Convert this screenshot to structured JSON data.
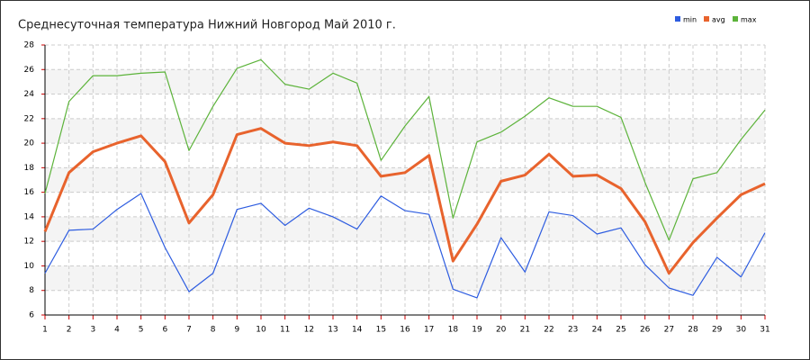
{
  "chart_data": {
    "type": "line",
    "title": "Среднесуточная температура Нижний Новгород  Май 2010 г.",
    "x": [
      1,
      2,
      3,
      4,
      5,
      6,
      7,
      8,
      9,
      10,
      11,
      12,
      13,
      14,
      15,
      16,
      17,
      18,
      19,
      20,
      21,
      22,
      23,
      24,
      25,
      26,
      27,
      28,
      29,
      30,
      31
    ],
    "xlim": [
      1,
      31
    ],
    "xticks": [
      1,
      2,
      3,
      4,
      5,
      6,
      7,
      8,
      9,
      10,
      11,
      12,
      13,
      14,
      15,
      16,
      17,
      18,
      19,
      20,
      21,
      22,
      23,
      24,
      25,
      26,
      27,
      28,
      29,
      30,
      31
    ],
    "ylim": [
      6,
      28
    ],
    "yticks": [
      6,
      8,
      10,
      12,
      14,
      16,
      18,
      20,
      22,
      24,
      26,
      28
    ],
    "grid": true,
    "legend": "top-right",
    "series": [
      {
        "name": "min",
        "color": "#2d5ce0",
        "values": [
          9.4,
          12.9,
          13.0,
          14.6,
          15.9,
          11.5,
          7.9,
          9.4,
          14.6,
          15.1,
          13.3,
          14.7,
          14.0,
          13.0,
          15.7,
          14.5,
          14.2,
          8.1,
          7.4,
          12.3,
          9.5,
          14.4,
          14.1,
          12.6,
          13.1,
          10.1,
          8.2,
          7.6,
          10.7,
          9.1,
          12.7
        ]
      },
      {
        "name": "avg",
        "color": "#e8632d",
        "values": [
          12.8,
          17.6,
          19.3,
          20.0,
          20.6,
          18.5,
          13.5,
          15.8,
          20.7,
          21.2,
          20.0,
          19.8,
          20.1,
          19.8,
          17.3,
          17.6,
          19.0,
          10.4,
          13.4,
          16.9,
          17.4,
          19.1,
          17.3,
          17.4,
          16.3,
          13.6,
          9.4,
          11.9,
          13.9,
          15.8,
          16.7
        ]
      },
      {
        "name": "max",
        "color": "#5cb33a",
        "values": [
          15.9,
          23.4,
          25.5,
          25.5,
          25.7,
          25.8,
          19.4,
          23.0,
          26.1,
          26.8,
          24.8,
          24.4,
          25.7,
          24.9,
          18.6,
          21.4,
          23.8,
          13.9,
          20.1,
          20.9,
          22.2,
          23.7,
          23.0,
          23.0,
          22.1,
          16.8,
          12.1,
          17.1,
          17.6,
          20.3,
          22.7
        ]
      }
    ]
  }
}
